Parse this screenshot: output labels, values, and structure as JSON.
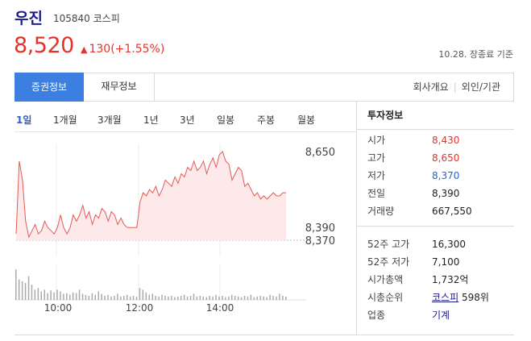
{
  "header": {
    "name": "우진",
    "code": "105840 코스피",
    "price": "8,520",
    "change_arrow": "▲",
    "change": "130(+1.55%)",
    "basis": "10.28. 장종료 기준"
  },
  "tabs": {
    "active": "증권정보",
    "second": "재무정보",
    "link1": "회사개요",
    "sep": "|",
    "link2": "외인/기관"
  },
  "periods": [
    "1일",
    "1개월",
    "3개월",
    "1년",
    "3년",
    "일봉",
    "주봉",
    "월봉"
  ],
  "colors": {
    "up": "#e5332a",
    "down": "#2a64c9",
    "active_tab": "#3d7fe0"
  },
  "info": {
    "title": "투자정보",
    "rows": [
      {
        "label": "시가",
        "value": "8,430"
      },
      {
        "label": "고가",
        "value": "8,650"
      },
      {
        "label": "저가",
        "value": "8,370"
      },
      {
        "label": "전일",
        "value": "8,390"
      },
      {
        "label": "거래량",
        "value": "667,550"
      },
      {
        "label": "52주 고가",
        "value": "16,300"
      },
      {
        "label": "52주 저가",
        "value": "7,100"
      },
      {
        "label": "시가총액",
        "value": "1,732억"
      },
      {
        "label": "시총순위",
        "value": "코스피",
        "extra": "598위"
      },
      {
        "label": "업종",
        "value": "기계"
      }
    ]
  },
  "chart_data": {
    "type": "line",
    "y_tick_labels": [
      "8,650",
      "8,390",
      "8,370"
    ],
    "x_tick_labels": [
      "10:00",
      "12:00",
      "14:00"
    ],
    "ylim": [
      8370,
      8650
    ],
    "x_start": "09:00",
    "x_end": "15:30",
    "values": [
      8390,
      8620,
      8560,
      8430,
      8380,
      8400,
      8420,
      8390,
      8400,
      8430,
      8410,
      8400,
      8390,
      8410,
      8450,
      8410,
      8390,
      8410,
      8450,
      8430,
      8450,
      8480,
      8440,
      8460,
      8420,
      8450,
      8440,
      8470,
      8460,
      8430,
      8460,
      8450,
      8420,
      8440,
      8420,
      8410,
      8410,
      8410,
      8410,
      8490,
      8520,
      8510,
      8530,
      8520,
      8540,
      8510,
      8530,
      8560,
      8550,
      8540,
      8570,
      8550,
      8580,
      8570,
      8600,
      8590,
      8620,
      8590,
      8600,
      8620,
      8580,
      8610,
      8630,
      8600,
      8640,
      8650,
      8620,
      8610,
      8560,
      8580,
      8600,
      8590,
      8540,
      8550,
      8530,
      8510,
      8520,
      8500,
      8510,
      8500,
      8510,
      8520,
      8510,
      8510,
      8520,
      8520
    ],
    "volumes": [
      0.9,
      0.6,
      0.55,
      0.5,
      0.7,
      0.45,
      0.3,
      0.35,
      0.25,
      0.3,
      0.2,
      0.28,
      0.22,
      0.3,
      0.25,
      0.18,
      0.2,
      0.15,
      0.22,
      0.2,
      0.3,
      0.18,
      0.15,
      0.12,
      0.2,
      0.15,
      0.25,
      0.18,
      0.12,
      0.15,
      0.1,
      0.12,
      0.18,
      0.1,
      0.12,
      0.15,
      0.1,
      0.12,
      0.1,
      0.35,
      0.3,
      0.22,
      0.15,
      0.18,
      0.12,
      0.1,
      0.15,
      0.12,
      0.1,
      0.12,
      0.08,
      0.1,
      0.12,
      0.15,
      0.1,
      0.12,
      0.18,
      0.1,
      0.12,
      0.1,
      0.08,
      0.12,
      0.1,
      0.15,
      0.1,
      0.12,
      0.08,
      0.1,
      0.15,
      0.12,
      0.1,
      0.08,
      0.12,
      0.1,
      0.15,
      0.08,
      0.1,
      0.12,
      0.1,
      0.08,
      0.15,
      0.12,
      0.1,
      0.18,
      0.12,
      0.1
    ]
  }
}
